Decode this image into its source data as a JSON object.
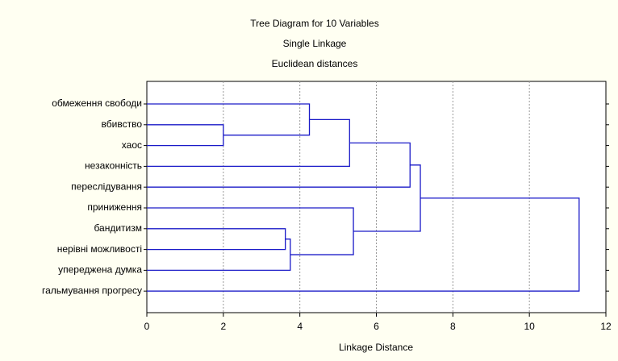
{
  "chart_data": {
    "type": "dendrogram",
    "title": "Tree Diagram for 10 Variables",
    "subtitle": [
      "Single Linkage",
      "Euclidean distances"
    ],
    "x_label": "Linkage Distance",
    "leaves": [
      "обмеження свободи",
      "вбивство",
      "хаос",
      "незаконність",
      "переслідування",
      "приниження",
      "бандитизм",
      "нерівні можливості",
      "упереджена думка",
      "гальмування прогресу"
    ],
    "merges": [
      {
        "children": [
          1,
          2
        ],
        "distance": 2.0
      },
      {
        "children": [
          0,
          10
        ],
        "distance": 4.25
      },
      {
        "children": [
          11,
          3
        ],
        "distance": 5.3
      },
      {
        "children": [
          12,
          4
        ],
        "distance": 6.88
      },
      {
        "children": [
          6,
          7
        ],
        "distance": 3.62
      },
      {
        "children": [
          14,
          8
        ],
        "distance": 3.75
      },
      {
        "children": [
          5,
          15
        ],
        "distance": 5.4
      },
      {
        "children": [
          13,
          16
        ],
        "distance": 7.15
      },
      {
        "children": [
          17,
          9
        ],
        "distance": 11.3
      }
    ],
    "color": "#1a1ac8",
    "xlim": [
      0,
      12
    ],
    "xticks": [
      0,
      2,
      4,
      6,
      8,
      10,
      12
    ],
    "grid": true
  }
}
